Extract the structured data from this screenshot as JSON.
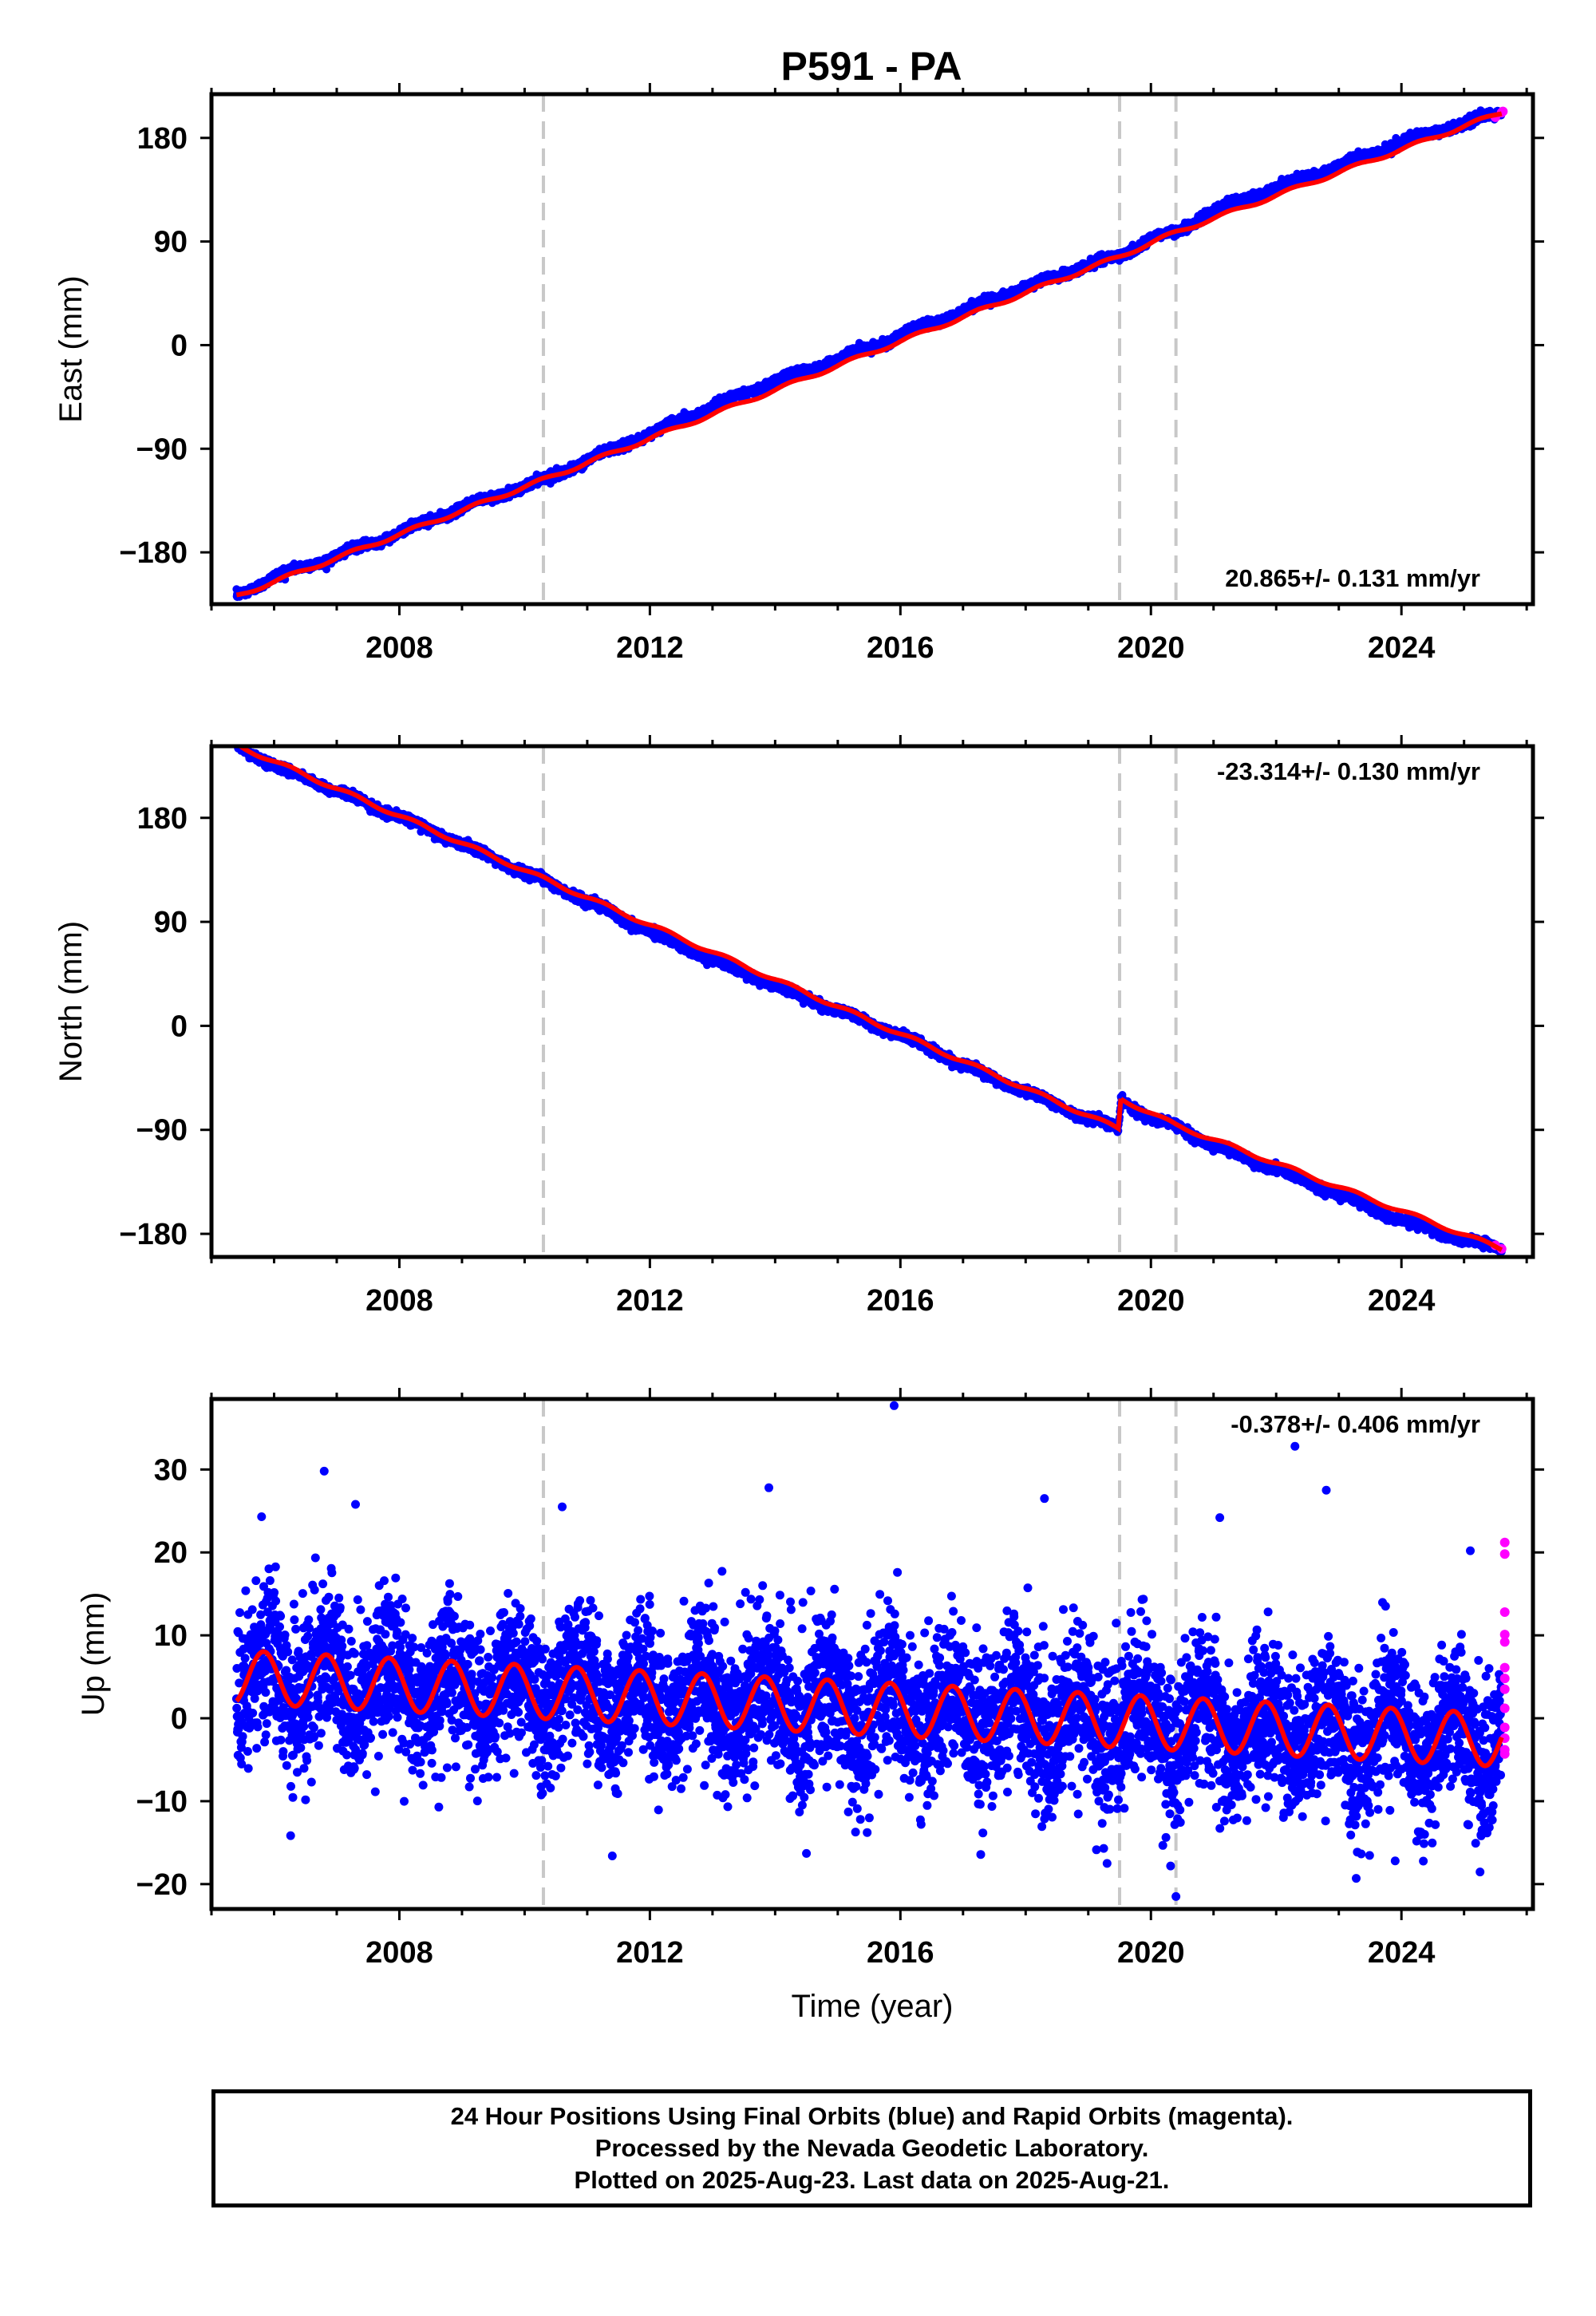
{
  "title": "P591 - PA",
  "colors": {
    "final": "#0000ff",
    "rapid": "#ff00ff",
    "model": "#ff0000",
    "steps": "#c8c8c8"
  },
  "chart_data": [
    {
      "type": "scatter",
      "component": "east",
      "ylabel": "East (mm)",
      "xlabel": "",
      "xlim": [
        2005.0,
        2026.1
      ],
      "ylim": [
        -225,
        218
      ],
      "xticks": [
        2008,
        2012,
        2016,
        2020,
        2024
      ],
      "yticks": [
        -180,
        -90,
        0,
        90,
        180
      ],
      "step_lines_x": [
        2010.3,
        2019.5,
        2020.4
      ],
      "rate_label": "20.865+/- 0.131 mm/yr",
      "rate_mm_per_yr": 20.865,
      "series": [
        {
          "name": "Final Orbits",
          "color": "blue",
          "points": [
            [
              2005.4,
              -218
            ],
            [
              2006.0,
              -201
            ],
            [
              2007.0,
              -183
            ],
            [
              2008.0,
              -163
            ],
            [
              2009.0,
              -141
            ],
            [
              2010.0,
              -123
            ],
            [
              2010.3,
              -117
            ],
            [
              2011.0,
              -100
            ],
            [
              2012.0,
              -77
            ],
            [
              2013.0,
              -53
            ],
            [
              2014.0,
              -31
            ],
            [
              2015.0,
              -12
            ],
            [
              2016.0,
              8
            ],
            [
              2017.0,
              30
            ],
            [
              2018.0,
              50
            ],
            [
              2019.0,
              70
            ],
            [
              2019.5,
              77
            ],
            [
              2020.0,
              93
            ],
            [
              2020.4,
              98
            ],
            [
              2021.0,
              117
            ],
            [
              2022.0,
              137
            ],
            [
              2023.0,
              156
            ],
            [
              2024.0,
              176
            ],
            [
              2025.0,
              193
            ],
            [
              2025.6,
              202
            ]
          ]
        },
        {
          "name": "Rapid Orbits",
          "color": "magenta",
          "points": [
            [
              2025.5,
              198
            ],
            [
              2025.6,
              202
            ],
            [
              2025.62,
              203
            ]
          ]
        }
      ],
      "model": {
        "color": "red",
        "points": [
          [
            2005.4,
            -218
          ],
          [
            2010.3,
            -117
          ],
          [
            2019.5,
            77
          ],
          [
            2020.4,
            98
          ],
          [
            2025.6,
            202
          ]
        ]
      }
    },
    {
      "type": "scatter",
      "component": "north",
      "ylabel": "North (mm)",
      "xlabel": "",
      "xlim": [
        2005.0,
        2026.1
      ],
      "ylim": [
        -200,
        242
      ],
      "xticks": [
        2008,
        2012,
        2016,
        2020,
        2024
      ],
      "yticks": [
        -180,
        -90,
        0,
        90,
        180
      ],
      "step_lines_x": [
        2010.3,
        2019.5,
        2020.4
      ],
      "rate_label": "-23.314+/- 0.130 mm/yr",
      "rate_mm_per_yr": -23.314,
      "series": [
        {
          "name": "Final Orbits",
          "color": "blue",
          "points": [
            [
              2005.4,
              243
            ],
            [
              2006.0,
              225
            ],
            [
              2007.0,
              203
            ],
            [
              2008.0,
              181
            ],
            [
              2009.0,
              157
            ],
            [
              2010.0,
              133
            ],
            [
              2010.3,
              126
            ],
            [
              2011.0,
              108
            ],
            [
              2012.0,
              82
            ],
            [
              2013.0,
              57
            ],
            [
              2014.0,
              35
            ],
            [
              2015.0,
              13
            ],
            [
              2016.0,
              -8
            ],
            [
              2017.0,
              -34
            ],
            [
              2018.0,
              -57
            ],
            [
              2019.0,
              -80
            ],
            [
              2019.48,
              -89
            ],
            [
              2019.52,
              -63
            ],
            [
              2020.0,
              -80
            ],
            [
              2020.4,
              -86
            ],
            [
              2021.0,
              -104
            ],
            [
              2022.0,
              -124
            ],
            [
              2023.0,
              -146
            ],
            [
              2024.0,
              -168
            ],
            [
              2025.0,
              -185
            ],
            [
              2025.6,
              -193
            ]
          ]
        },
        {
          "name": "Rapid Orbits",
          "color": "magenta",
          "points": [
            [
              2025.5,
              -190
            ],
            [
              2025.6,
              -193
            ]
          ]
        }
      ],
      "model": {
        "color": "red",
        "points": [
          [
            2005.4,
            243
          ],
          [
            2019.48,
            -89
          ],
          [
            2019.52,
            -63
          ],
          [
            2020.4,
            -86
          ],
          [
            2025.6,
            -193
          ]
        ]
      }
    },
    {
      "type": "scatter",
      "component": "up",
      "ylabel": "Up (mm)",
      "xlabel": "Time (year)",
      "xlim": [
        2005.0,
        2026.1
      ],
      "ylim": [
        -23,
        38.5
      ],
      "xticks": [
        2008,
        2012,
        2016,
        2020,
        2024
      ],
      "yticks": [
        -20,
        -10,
        0,
        10,
        20,
        30
      ],
      "step_lines_x": [
        2010.3,
        2019.5,
        2020.4
      ],
      "rate_label": "-0.378+/- 0.406 mm/yr",
      "rate_mm_per_yr": -0.378,
      "scatter_sd_mm": 4.5,
      "outliers": [
        [
          2006.8,
          29.8
        ],
        [
          2015.9,
          37.7
        ],
        [
          2022.3,
          32.8
        ],
        [
          2020.4,
          -21.5
        ],
        [
          2019.3,
          -17.5
        ],
        [
          2014.5,
          -16.3
        ],
        [
          2011.4,
          -16.6
        ],
        [
          2023.9,
          -17.2
        ],
        [
          2007.3,
          25.8
        ],
        [
          2010.6,
          25.5
        ],
        [
          2013.9,
          27.8
        ],
        [
          2018.3,
          26.5
        ],
        [
          2021.1,
          24.2
        ],
        [
          2022.8,
          27.5
        ],
        [
          2005.8,
          24.3
        ],
        [
          2025.1,
          20.2
        ]
      ],
      "series": [
        {
          "name": "Final Orbits",
          "color": "blue",
          "points": []
        },
        {
          "name": "Rapid Orbits",
          "color": "magenta",
          "points": [
            [
              2025.65,
              21.2
            ],
            [
              2025.65,
              19.8
            ],
            [
              2025.65,
              12.8
            ],
            [
              2025.65,
              10.1
            ],
            [
              2025.65,
              9.2
            ],
            [
              2025.65,
              6.1
            ],
            [
              2025.65,
              4.8
            ],
            [
              2025.65,
              3.5
            ],
            [
              2025.65,
              1.2
            ],
            [
              2025.65,
              -1.1
            ],
            [
              2025.65,
              -2.4
            ],
            [
              2025.65,
              -3.8
            ],
            [
              2025.65,
              -4.3
            ]
          ]
        }
      ],
      "model": {
        "color": "red",
        "intercept_mm": 5.0,
        "rate_mm_per_yr": -0.378,
        "annual_amplitude_mm": 3.2,
        "annual_peak_month": 10
      }
    }
  ],
  "footer": {
    "line1": "24 Hour Positions Using Final Orbits (blue) and Rapid Orbits (magenta).",
    "line2": "Processed by the Nevada Geodetic Laboratory.",
    "line3": "Plotted on 2025-Aug-23. Last data on 2025-Aug-21."
  }
}
